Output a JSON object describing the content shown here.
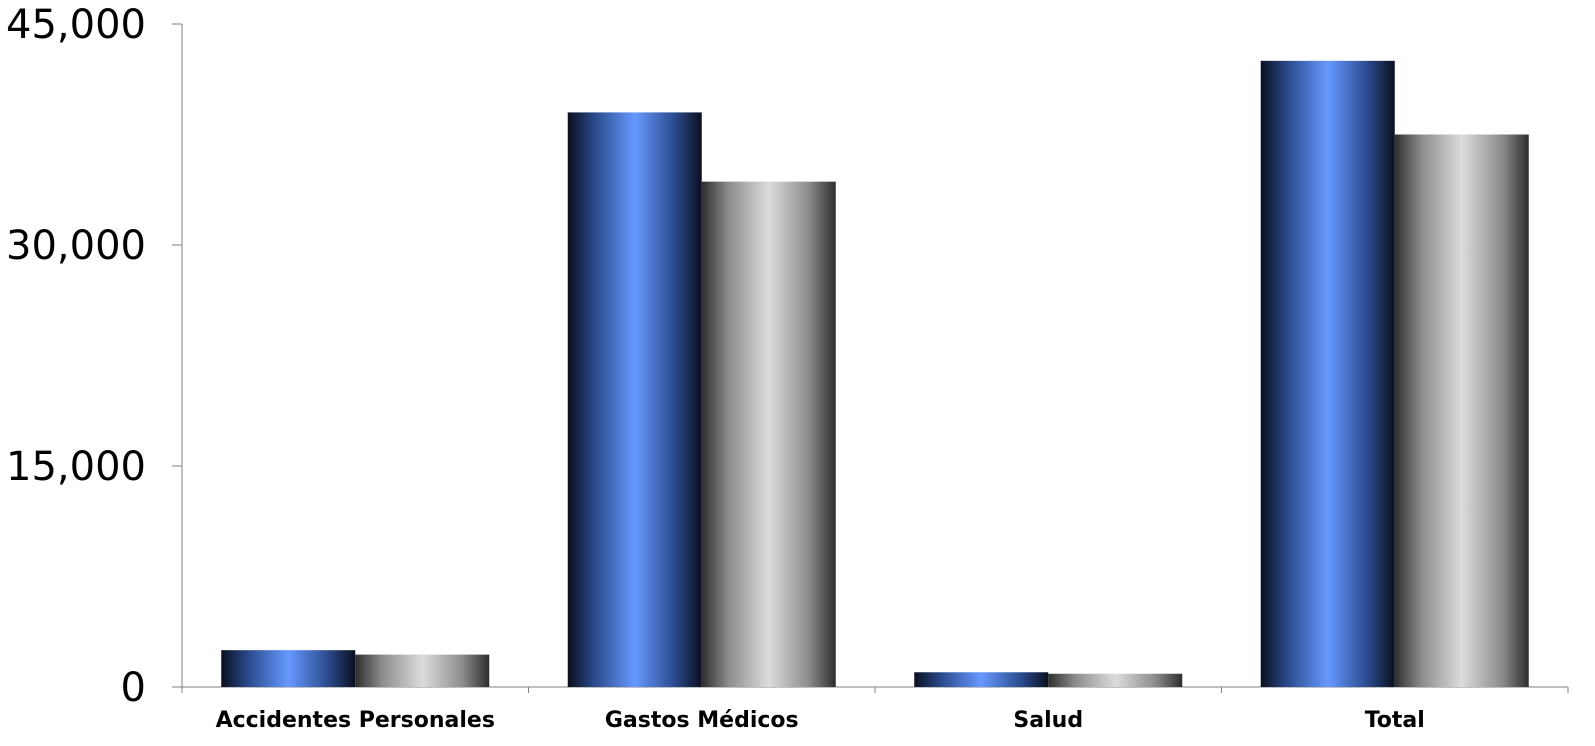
{
  "chart_data": {
    "type": "bar",
    "title": "",
    "xlabel": "",
    "ylabel": "",
    "categories": [
      "Accidentes Personales",
      "Gastos Médicos",
      "Salud",
      "Total"
    ],
    "series": [
      {
        "values": [
          2500,
          39000,
          1000,
          42500
        ],
        "colors": {
          "edge": "#0a0f1e",
          "mid": "#2a4a8c",
          "highlight": "#6699ff"
        }
      },
      {
        "values": [
          2200,
          34300,
          900,
          37500
        ],
        "colors": {
          "edge": "#2e2e2e",
          "mid": "#8c8c8c",
          "highlight": "#dcdcdc"
        }
      }
    ],
    "ylim": [
      0,
      45000
    ],
    "yticks": [
      0,
      15000,
      30000,
      45000
    ],
    "ytick_labels": [
      "0",
      "15,000",
      "30,000",
      "45,000"
    ],
    "grid": false,
    "legend": "none",
    "axis_color": "#808080"
  }
}
